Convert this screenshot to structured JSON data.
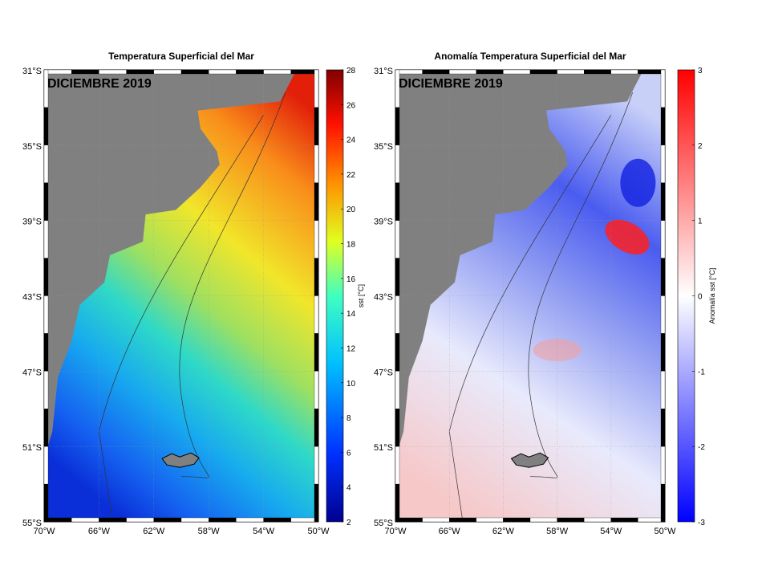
{
  "panels": [
    {
      "title": "Temperatura Superficial del Mar",
      "month_label": "DICIEMBRE 2019",
      "colorbar_label": "sst [°C]",
      "colorbar_ticks": [
        "2",
        "4",
        "6",
        "8",
        "10",
        "12",
        "14",
        "16",
        "18",
        "20",
        "22",
        "24",
        "26",
        "28"
      ],
      "colorbar_range": [
        2,
        28
      ]
    },
    {
      "title": "Anomalía Temperatura  Superficial del Mar",
      "month_label": "DICIEMBRE 2019",
      "colorbar_label": "Anomalía sst [°C]",
      "colorbar_ticks": [
        "-3",
        "-2",
        "-1",
        "0",
        "1",
        "2",
        "3"
      ],
      "colorbar_range": [
        -3,
        3
      ]
    }
  ],
  "lat_labels": [
    "31°S",
    "35°S",
    "39°S",
    "43°S",
    "47°S",
    "51°S",
    "55°S"
  ],
  "lon_labels": [
    "70°W",
    "66°W",
    "62°W",
    "58°W",
    "54°W",
    "50°W"
  ],
  "colors": {
    "land": "#808080",
    "frame": "#000000"
  }
}
